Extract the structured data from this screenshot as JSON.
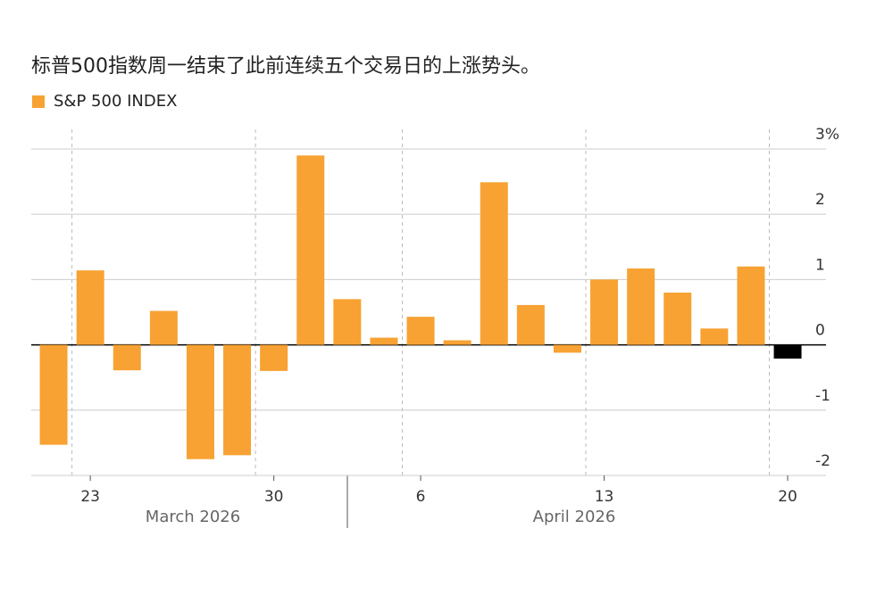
{
  "chart_data": {
    "type": "bar",
    "title": "标普500指数周一结束了此前连续五个交易日的上涨势头。",
    "series": [
      {
        "name": "S&P 500 INDEX",
        "color": "#f7a233",
        "values": [
          -1.53,
          1.14,
          -0.39,
          0.52,
          -1.75,
          -1.69,
          -0.4,
          2.9,
          0.7,
          0.11,
          0.43,
          0.07,
          2.49,
          0.61,
          -0.12,
          1.0,
          1.17,
          0.8,
          0.25,
          1.2,
          -0.21
        ],
        "colors": [
          "#f7a233",
          "#f7a233",
          "#f7a233",
          "#f7a233",
          "#f7a233",
          "#f7a233",
          "#f7a233",
          "#f7a233",
          "#f7a233",
          "#f7a233",
          "#f7a233",
          "#f7a233",
          "#f7a233",
          "#f7a233",
          "#f7a233",
          "#f7a233",
          "#f7a233",
          "#f7a233",
          "#f7a233",
          "#f7a233",
          "#000000"
        ]
      }
    ],
    "categories": [
      null,
      "23",
      null,
      null,
      null,
      null,
      "30",
      null,
      null,
      null,
      "6",
      null,
      null,
      null,
      null,
      "13",
      null,
      null,
      null,
      null,
      "20"
    ],
    "months": [
      "March 2026",
      "April 2026"
    ],
    "ylim": [
      -2,
      3.3
    ],
    "yticks": [
      {
        "value": 3,
        "label": "3%"
      },
      2,
      1,
      0,
      -1,
      -2
    ],
    "grid": true
  }
}
